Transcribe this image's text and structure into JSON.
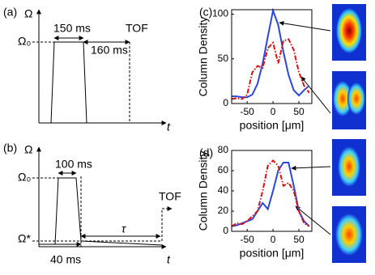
{
  "diagrams": [
    {
      "label": "(a)",
      "y_axis": "Ω",
      "level": "Ω₀",
      "pulse": "150 ms",
      "delay": "160 ms",
      "tof": "TOF",
      "x_axis": "t"
    },
    {
      "label": "(b)",
      "y_axis": "Ω",
      "level": "Ω₀",
      "pulse": "100 ms",
      "tof": "TOF",
      "wait": "τ",
      "final_level": "Ω*",
      "ramp": "40 ms",
      "x_axis": "t"
    }
  ],
  "chart_data": [
    {
      "type": "line",
      "label": "(c)",
      "ylabel": "Column Density",
      "xlabel": "position [μm]",
      "x": [
        -80,
        -70,
        -60,
        -50,
        -40,
        -30,
        -20,
        -10,
        0,
        10,
        20,
        30,
        40,
        50,
        60,
        70
      ],
      "xlim": [
        -80,
        75
      ],
      "xticks": [
        -50,
        0,
        50
      ],
      "ylim": [
        0,
        105
      ],
      "yticks": [
        0,
        50,
        100
      ],
      "series": [
        {
          "color": "#2b45e0",
          "dash": "solid",
          "values": [
            8,
            8,
            7,
            7,
            10,
            22,
            45,
            75,
            104,
            88,
            58,
            32,
            15,
            9,
            15,
            20
          ]
        },
        {
          "color": "#e01010",
          "dash": "dashdot",
          "values": [
            5,
            6,
            5,
            10,
            35,
            42,
            40,
            62,
            68,
            45,
            70,
            72,
            60,
            35,
            20,
            12
          ]
        }
      ]
    },
    {
      "type": "line",
      "label": "(d)",
      "ylabel": "Column Density",
      "xlabel": "position [μm]",
      "x": [
        -80,
        -70,
        -60,
        -50,
        -40,
        -30,
        -20,
        -10,
        0,
        10,
        20,
        30,
        40,
        50,
        60,
        70
      ],
      "xlim": [
        -80,
        75
      ],
      "xticks": [
        -50,
        0,
        50
      ],
      "ylim": [
        0,
        80
      ],
      "yticks": [
        0,
        20,
        40,
        60,
        80
      ],
      "series": [
        {
          "color": "#2b45e0",
          "dash": "solid",
          "values": [
            5,
            6,
            8,
            10,
            12,
            20,
            28,
            22,
            40,
            60,
            68,
            68,
            45,
            20,
            10,
            5
          ]
        },
        {
          "color": "#e01010",
          "dash": "dashdot",
          "values": [
            5,
            8,
            7,
            10,
            15,
            20,
            40,
            65,
            70,
            65,
            45,
            48,
            40,
            20,
            8,
            5
          ]
        }
      ]
    }
  ]
}
